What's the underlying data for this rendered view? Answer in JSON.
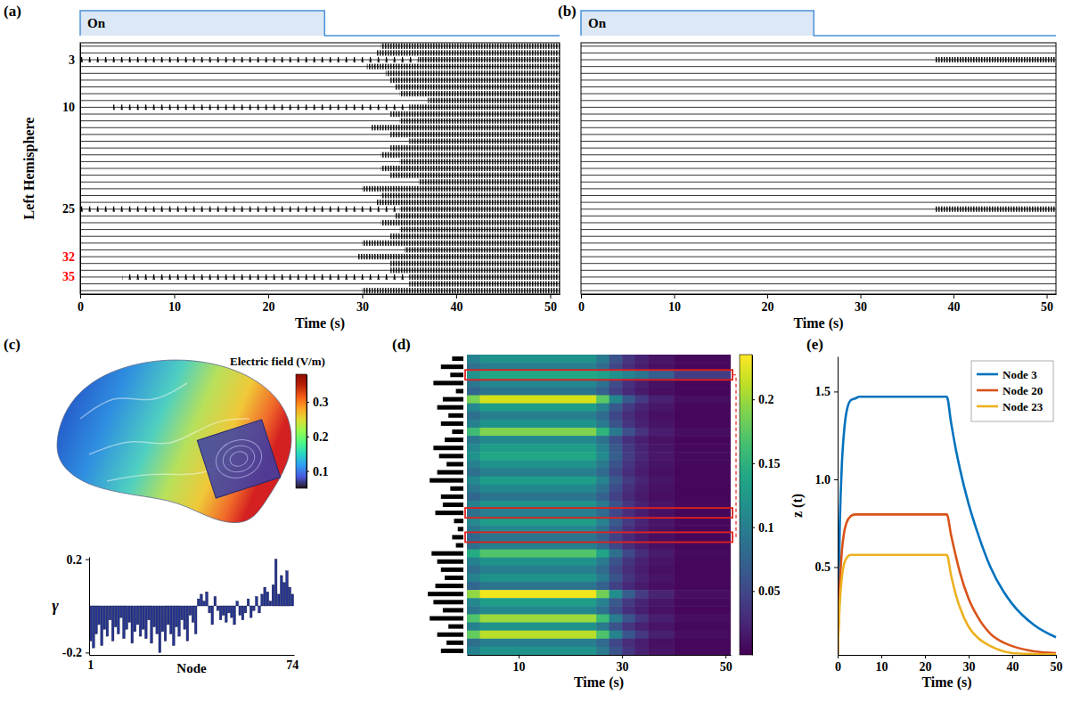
{
  "chart_data": [
    {
      "type": "raster",
      "title": "(a)",
      "stimulus": {
        "label": "On",
        "on": [
          0,
          26
        ]
      },
      "ylabel": "Left Hemisphere",
      "xlabel": "Time (s)",
      "xlim": [
        0,
        51
      ],
      "xticks": [
        0,
        10,
        20,
        30,
        40,
        50
      ],
      "categories": [
        null,
        null,
        "3",
        null,
        null,
        null,
        null,
        null,
        null,
        "10",
        null,
        null,
        null,
        null,
        null,
        null,
        null,
        null,
        null,
        null,
        null,
        null,
        null,
        null,
        "25",
        null,
        null,
        null,
        null,
        null,
        null,
        "32",
        null,
        null,
        "35",
        null,
        null
      ],
      "colors": [
        null,
        null,
        "#000000",
        null,
        null,
        null,
        null,
        null,
        null,
        "#000000",
        null,
        null,
        null,
        null,
        null,
        null,
        null,
        null,
        null,
        null,
        null,
        null,
        null,
        null,
        "#000000",
        null,
        null,
        null,
        null,
        null,
        null,
        "#ff0000",
        null,
        null,
        "#ff0000",
        null,
        null
      ],
      "spikes": [
        null,
        null,
        0,
        null,
        null,
        null,
        null,
        null,
        null,
        3.5,
        null,
        null,
        null,
        null,
        null,
        null,
        null,
        null,
        null,
        null,
        null,
        null,
        null,
        null,
        0,
        null,
        null,
        null,
        null,
        null,
        null,
        null,
        null,
        null,
        4.5,
        null,
        null
      ],
      "seizure": [
        32,
        31.5,
        36,
        30.5,
        32.5,
        33,
        33.5,
        34,
        37,
        35,
        33,
        34,
        31,
        33,
        35,
        33,
        32,
        34,
        32,
        33,
        36,
        30,
        32,
        31.5,
        34,
        33.5,
        32,
        34,
        33,
        30,
        34.5,
        29.5,
        33,
        33,
        35,
        35,
        30
      ]
    },
    {
      "type": "raster",
      "title": "(b)",
      "stimulus": {
        "label": "On",
        "on": [
          0,
          25
        ]
      },
      "xlabel": "Time (s)",
      "xlim": [
        0,
        51
      ],
      "xticks": [
        0,
        10,
        20,
        30,
        40,
        50
      ],
      "tick_labels": "x",
      "spikes": [
        null,
        null,
        null,
        null,
        null,
        null,
        null,
        null,
        null,
        null,
        null,
        null,
        null,
        null,
        null,
        null,
        null,
        null,
        null,
        null,
        null,
        null,
        null,
        null,
        null,
        null,
        null,
        null,
        null,
        null,
        null,
        null,
        null,
        null,
        null,
        null,
        null
      ],
      "seizure": [
        null,
        null,
        38,
        null,
        null,
        null,
        null,
        null,
        null,
        null,
        null,
        null,
        null,
        null,
        null,
        null,
        null,
        null,
        null,
        null,
        null,
        null,
        null,
        null,
        38,
        null,
        null,
        null,
        null,
        null,
        null,
        null,
        null,
        null,
        null,
        null,
        null
      ]
    },
    {
      "type": "colorbar",
      "title": "(c)",
      "label": "Electric field (V/m)",
      "range": [
        0.05,
        0.38
      ],
      "ticks": [
        0.1,
        0.2,
        0.3
      ]
    },
    {
      "type": "bar",
      "ylabel": "γ",
      "xlabel": "Node",
      "categories": [
        "1",
        null,
        null,
        null,
        null,
        null,
        null,
        null,
        null,
        null,
        null,
        null,
        null,
        null,
        null,
        null,
        null,
        null,
        null,
        null,
        null,
        null,
        null,
        null,
        null,
        null,
        null,
        null,
        null,
        null,
        null,
        null,
        null,
        null,
        null,
        null,
        null,
        null,
        null,
        null,
        null,
        null,
        null,
        null,
        null,
        null,
        null,
        null,
        null,
        null,
        null,
        null,
        null,
        null,
        null,
        null,
        null,
        null,
        null,
        null,
        null,
        null,
        null,
        null,
        null,
        null,
        null,
        null,
        null,
        null,
        null,
        null,
        null,
        "74"
      ],
      "values": [
        -0.15,
        -0.18,
        -0.12,
        -0.08,
        -0.17,
        -0.1,
        -0.13,
        -0.06,
        -0.15,
        -0.09,
        -0.12,
        -0.05,
        -0.14,
        -0.1,
        -0.07,
        -0.16,
        -0.11,
        -0.08,
        -0.13,
        -0.1,
        -0.14,
        -0.06,
        -0.16,
        -0.09,
        -0.12,
        -0.2,
        -0.11,
        -0.15,
        -0.08,
        -0.12,
        -0.17,
        -0.09,
        -0.13,
        -0.06,
        -0.1,
        -0.15,
        -0.04,
        -0.07,
        -0.12,
        0.03,
        0.05,
        0.02,
        0.06,
        -0.03,
        -0.08,
        0.04,
        -0.02,
        -0.06,
        -0.04,
        -0.07,
        -0.03,
        -0.05,
        -0.08,
        0.02,
        -0.04,
        -0.06,
        -0.03,
        0.03,
        -0.05,
        -0.02,
        0.04,
        -0.03,
        0.05,
        0.08,
        0.06,
        0.02,
        0.09,
        0.2,
        0.05,
        0.13,
        0.1,
        0.15,
        0.08,
        0.05
      ],
      "ylim": [
        -0.21,
        0.21
      ],
      "yticks": [
        -0.2,
        0.2
      ],
      "color": "#26358f"
    },
    {
      "type": "heatmap",
      "title": "(d)",
      "xlabel": "Time (s)",
      "xlim": [
        0,
        51
      ],
      "xticks": [
        10,
        30,
        50
      ],
      "bins": [
        0,
        2.5,
        25,
        27.5,
        30,
        32.5,
        35,
        40,
        51
      ],
      "cells": [
        [
          0.102,
          0.12,
          0.096,
          0.06,
          0.036,
          0.022,
          0.012,
          0.005
        ],
        [
          0.085,
          0.1,
          0.08,
          0.05,
          0.03,
          0.018,
          0.01,
          0.004
        ],
        [
          0.119,
          0.14,
          0.133,
          0.119,
          0.105,
          0.091,
          0.07,
          0.042
        ],
        [
          0.094,
          0.11,
          0.088,
          0.055,
          0.033,
          0.02,
          0.011,
          0.004
        ],
        [
          0.077,
          0.09,
          0.072,
          0.045,
          0.027,
          0.016,
          0.009,
          0.004
        ],
        [
          0.187,
          0.22,
          0.176,
          0.11,
          0.066,
          0.04,
          0.022,
          0.009
        ],
        [
          0.111,
          0.13,
          0.104,
          0.065,
          0.039,
          0.023,
          0.013,
          0.005
        ],
        [
          0.085,
          0.1,
          0.08,
          0.05,
          0.03,
          0.018,
          0.01,
          0.004
        ],
        [
          0.102,
          0.12,
          0.096,
          0.06,
          0.036,
          0.022,
          0.012,
          0.005
        ],
        [
          0.162,
          0.19,
          0.152,
          0.095,
          0.057,
          0.034,
          0.019,
          0.008
        ],
        [
          0.094,
          0.11,
          0.088,
          0.055,
          0.033,
          0.02,
          0.011,
          0.004
        ],
        [
          0.111,
          0.13,
          0.104,
          0.065,
          0.039,
          0.023,
          0.013,
          0.005
        ],
        [
          0.119,
          0.14,
          0.112,
          0.07,
          0.042,
          0.025,
          0.014,
          0.006
        ],
        [
          0.102,
          0.12,
          0.096,
          0.06,
          0.036,
          0.022,
          0.012,
          0.005
        ],
        [
          0.085,
          0.1,
          0.08,
          0.05,
          0.03,
          0.018,
          0.01,
          0.004
        ],
        [
          0.111,
          0.13,
          0.104,
          0.065,
          0.039,
          0.023,
          0.013,
          0.005
        ],
        [
          0.094,
          0.11,
          0.088,
          0.055,
          0.033,
          0.02,
          0.011,
          0.004
        ],
        [
          0.077,
          0.09,
          0.072,
          0.045,
          0.027,
          0.016,
          0.009,
          0.004
        ],
        [
          0.102,
          0.12,
          0.096,
          0.06,
          0.036,
          0.022,
          0.012,
          0.005
        ],
        [
          0.085,
          0.1,
          0.08,
          0.05,
          0.03,
          0.018,
          0.01,
          0.004
        ],
        [
          0.111,
          0.13,
          0.104,
          0.065,
          0.039,
          0.023,
          0.013,
          0.005
        ],
        [
          0.094,
          0.11,
          0.088,
          0.055,
          0.033,
          0.02,
          0.011,
          0.004
        ],
        [
          0.077,
          0.09,
          0.072,
          0.045,
          0.027,
          0.016,
          0.009,
          0.004
        ],
        [
          0.085,
          0.1,
          0.08,
          0.05,
          0.03,
          0.018,
          0.01,
          0.004
        ],
        [
          0.145,
          0.17,
          0.136,
          0.085,
          0.051,
          0.031,
          0.017,
          0.007
        ],
        [
          0.102,
          0.12,
          0.096,
          0.06,
          0.036,
          0.022,
          0.012,
          0.005
        ],
        [
          0.085,
          0.1,
          0.08,
          0.05,
          0.03,
          0.018,
          0.01,
          0.004
        ],
        [
          0.102,
          0.12,
          0.096,
          0.06,
          0.036,
          0.022,
          0.012,
          0.005
        ],
        [
          0.077,
          0.09,
          0.072,
          0.045,
          0.027,
          0.016,
          0.009,
          0.004
        ],
        [
          0.196,
          0.23,
          0.184,
          0.115,
          0.069,
          0.041,
          0.023,
          0.009
        ],
        [
          0.111,
          0.13,
          0.104,
          0.065,
          0.039,
          0.023,
          0.013,
          0.005
        ],
        [
          0.094,
          0.11,
          0.088,
          0.055,
          0.033,
          0.02,
          0.011,
          0.004
        ],
        [
          0.17,
          0.2,
          0.16,
          0.1,
          0.06,
          0.036,
          0.02,
          0.008
        ],
        [
          0.102,
          0.12,
          0.096,
          0.06,
          0.036,
          0.022,
          0.012,
          0.005
        ],
        [
          0.179,
          0.21,
          0.168,
          0.105,
          0.063,
          0.038,
          0.021,
          0.008
        ],
        [
          0.085,
          0.1,
          0.08,
          0.05,
          0.03,
          0.018,
          0.01,
          0.004
        ],
        [
          0.102,
          0.12,
          0.096,
          0.06,
          0.036,
          0.022,
          0.012,
          0.005
        ]
      ],
      "colorbar": {
        "range": [
          0,
          0.235
        ],
        "ticks": [
          0.05,
          0.1,
          0.15,
          0.2
        ]
      },
      "bars": {
        "values": [
          0.3,
          0.6,
          0.35,
          0.8,
          0.2,
          0.55,
          0.7,
          0.4,
          0.6,
          0.3,
          0.5,
          0.8,
          0.65,
          0.45,
          0.7,
          0.9,
          0.35,
          0.6,
          0.55,
          0.75,
          0.25,
          0.15,
          0.3,
          0.2,
          0.85,
          0.7,
          0.6,
          0.5,
          0.75,
          0.95,
          0.8,
          0.55,
          0.9,
          0.4,
          0.7,
          0.45,
          0.6
        ],
        "xlim": [
          0,
          1
        ],
        "color": "#000000"
      },
      "highlighted_rows": [
        3,
        20,
        23
      ]
    },
    {
      "type": "line",
      "title": "(e)",
      "ylabel": "z (t)",
      "xlabel": "Time (s)",
      "x": [
        0,
        0.5,
        1,
        1.5,
        2,
        3,
        4,
        5,
        10,
        15,
        20,
        25,
        26,
        27,
        28,
        30,
        32,
        35,
        38,
        40,
        45,
        50
      ],
      "xlim": [
        0,
        50
      ],
      "xticks": [
        0,
        10,
        20,
        30,
        40,
        50
      ],
      "ylim": [
        0,
        1.7
      ],
      "yticks": [
        0.5,
        {
          "value": 1,
          "label": "1.0"
        },
        1.5
      ],
      "legend": "top-right",
      "series": [
        {
          "name": "Node 3",
          "color": "#0072bd",
          "values": [
            0,
            0.75,
            1.1,
            1.28,
            1.38,
            1.45,
            1.46,
            1.47,
            1.47,
            1.47,
            1.47,
            1.47,
            1.32,
            1.18,
            1.06,
            0.86,
            0.7,
            0.5,
            0.36,
            0.29,
            0.17,
            0.1
          ]
        },
        {
          "name": "Node 20",
          "color": "#d95319",
          "values": [
            0,
            0.4,
            0.6,
            0.7,
            0.75,
            0.79,
            0.8,
            0.8,
            0.8,
            0.8,
            0.8,
            0.8,
            0.68,
            0.57,
            0.47,
            0.32,
            0.22,
            0.12,
            0.07,
            0.05,
            0.02,
            0.01
          ]
        },
        {
          "name": "Node 23",
          "color": "#edb120",
          "values": [
            0,
            0.3,
            0.45,
            0.52,
            0.55,
            0.57,
            0.57,
            0.57,
            0.57,
            0.57,
            0.57,
            0.57,
            0.45,
            0.35,
            0.27,
            0.16,
            0.1,
            0.05,
            0.02,
            0.01,
            0.005,
            0.003
          ]
        }
      ]
    }
  ]
}
